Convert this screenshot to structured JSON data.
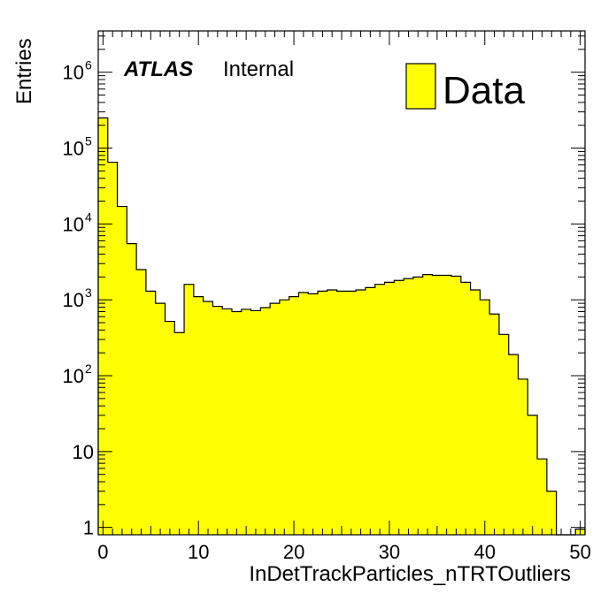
{
  "chart_data": {
    "type": "bar",
    "style": "histogram",
    "log_y": true,
    "x": [
      0,
      1,
      2,
      3,
      4,
      5,
      6,
      7,
      8,
      9,
      10,
      11,
      12,
      13,
      14,
      15,
      16,
      17,
      18,
      19,
      20,
      21,
      22,
      23,
      24,
      25,
      26,
      27,
      28,
      29,
      30,
      31,
      32,
      33,
      34,
      35,
      36,
      37,
      38,
      39,
      40,
      41,
      42,
      43,
      44,
      45,
      46,
      47,
      48,
      49,
      50
    ],
    "values": [
      250000,
      65000,
      17000,
      5500,
      2500,
      1300,
      900,
      520,
      370,
      1600,
      1100,
      950,
      820,
      760,
      700,
      750,
      720,
      790,
      900,
      1000,
      1100,
      1250,
      1200,
      1300,
      1350,
      1300,
      1300,
      1350,
      1450,
      1600,
      1700,
      1800,
      1900,
      2000,
      2150,
      2100,
      2100,
      2050,
      1700,
      1350,
      1000,
      650,
      350,
      190,
      90,
      30,
      8,
      3,
      0,
      0,
      0.95
    ],
    "xlabel": "InDetTrackParticles_nTRTOutliers",
    "ylabel": "Entries",
    "xlim": [
      -0.5,
      50.5
    ],
    "ylim": [
      0.8,
      3500000
    ],
    "x_ticks": [
      "0",
      "10",
      "20",
      "30",
      "40",
      "50"
    ],
    "y_ticks": [
      {
        "base": "1",
        "exp": ""
      },
      {
        "base": "10",
        "exp": ""
      },
      {
        "base": "10",
        "exp": "2"
      },
      {
        "base": "10",
        "exp": "3"
      },
      {
        "base": "10",
        "exp": "4"
      },
      {
        "base": "10",
        "exp": "5"
      },
      {
        "base": "10",
        "exp": "6"
      }
    ],
    "legend": [
      {
        "name": "Data",
        "color": "#ffff00"
      }
    ],
    "legend_position": "top-right",
    "fill_color": "#ffff00",
    "line_color": "#000000"
  },
  "label": {
    "experiment": "ATLAS",
    "status": "Internal"
  }
}
